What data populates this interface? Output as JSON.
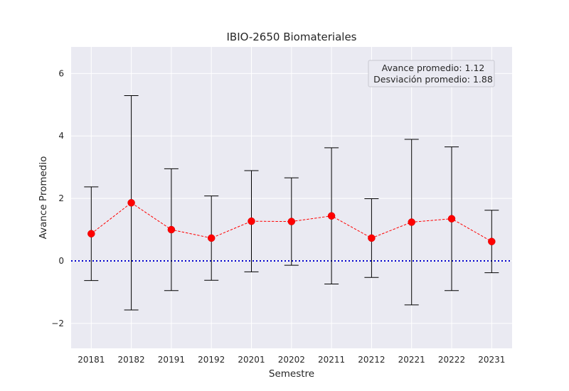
{
  "chart_data": {
    "type": "line",
    "title": "IBIO-2650 Biomateriales",
    "xlabel": "Semestre",
    "ylabel": "Avance Promedio",
    "categories": [
      "20181",
      "20182",
      "20191",
      "20192",
      "20201",
      "20202",
      "20211",
      "20212",
      "20221",
      "20222",
      "20231"
    ],
    "series": [
      {
        "values": [
          0.87,
          1.86,
          1.0,
          0.73,
          1.27,
          1.26,
          1.44,
          0.73,
          1.24,
          1.35,
          0.62
        ],
        "error": [
          1.5,
          3.43,
          1.95,
          1.35,
          1.62,
          1.4,
          2.18,
          1.26,
          2.65,
          2.3,
          1.0
        ],
        "color": "#ff0000",
        "line_style": "dashed",
        "marker": "circle",
        "errorbar_color": "#000000"
      }
    ],
    "reference_line": {
      "y": 0,
      "color": "#0000cc",
      "style": "dotted"
    },
    "ylim": [
      -2.8,
      6.85
    ],
    "yticks": [
      -2,
      0,
      2,
      4,
      6
    ],
    "ytick_labels": [
      "−2",
      "0",
      "2",
      "4",
      "6"
    ],
    "annotation": {
      "lines": [
        "Avance promedio: 1.12",
        "Desviación promedio: 1.88"
      ],
      "placement": "top-right"
    },
    "grid": true,
    "style": "seaborn-darkgrid",
    "plot_background": "#eaeaf2"
  }
}
